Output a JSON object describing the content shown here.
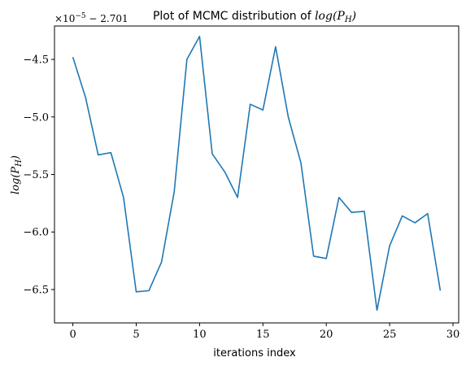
{
  "chart_data": {
    "type": "line",
    "title_text": "Plot of MCMC distribution of ",
    "title_math": "log(P",
    "title_math_sub": "H",
    "title_math_close": ")",
    "xlabel": "iterations index",
    "ylabel_math": "log(P",
    "ylabel_math_sub": "H",
    "ylabel_math_close": ")",
    "y_offset_label": "×10",
    "y_offset_exp": "−5",
    "y_offset_rest": " − 2.701",
    "xlim": [
      -1.45,
      30.45
    ],
    "ylim": [
      -6.79,
      -4.21
    ],
    "x_ticks": [
      0,
      5,
      10,
      15,
      20,
      25,
      30
    ],
    "x_tick_labels": [
      "0",
      "5",
      "10",
      "15",
      "20",
      "25",
      "30"
    ],
    "y_ticks": [
      -4.5,
      -5.0,
      -5.5,
      -6.0,
      -6.5
    ],
    "y_tick_labels": [
      "−4.5",
      "−5.0",
      "−5.5",
      "−6.0",
      "−6.5"
    ],
    "grid": false,
    "series": [
      {
        "color": "#1f77b4",
        "x": [
          0,
          1,
          2,
          3,
          4,
          5,
          6,
          7,
          8,
          9,
          10,
          11,
          12,
          13,
          14,
          15,
          16,
          17,
          18,
          19,
          20,
          21,
          22,
          23,
          24,
          25,
          26,
          27,
          28,
          29
        ],
        "values": [
          -4.48,
          -4.83,
          -5.33,
          -5.31,
          -5.7,
          -6.52,
          -6.51,
          -6.26,
          -5.65,
          -4.5,
          -4.3,
          -5.32,
          -5.48,
          -5.7,
          -4.89,
          -4.94,
          -4.39,
          -5.0,
          -5.4,
          -6.21,
          -6.23,
          -5.7,
          -5.83,
          -5.82,
          -6.68,
          -6.12,
          -5.86,
          -5.92,
          -5.84,
          -6.51
        ]
      }
    ]
  }
}
